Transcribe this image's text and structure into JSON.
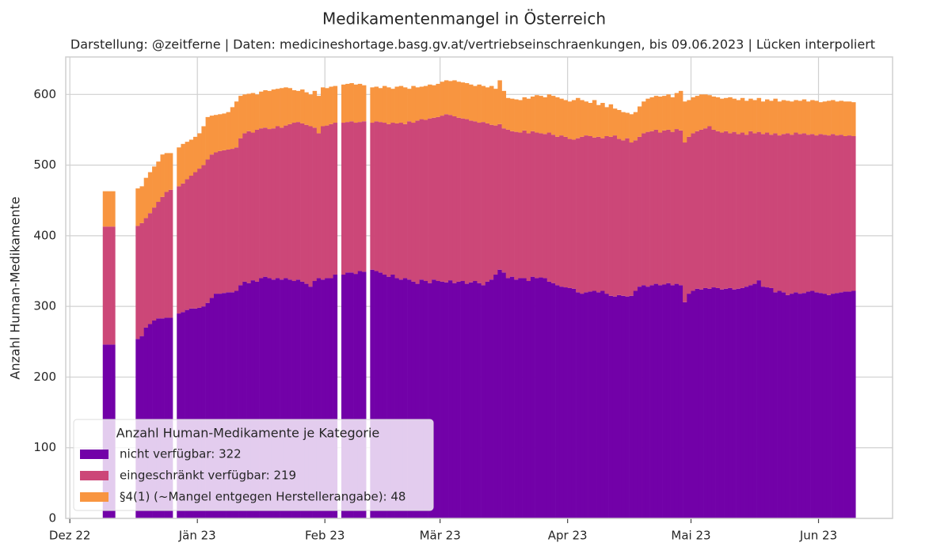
{
  "chart_data": {
    "type": "stacked_bar",
    "title": "Medikamentenmangel in Österreich",
    "subtitle": "Darstellung: @zeitferne | Daten: medicineshortage.basg.gv.at/vertriebseinschraenkungen, bis 09.06.2023 | Lücken interpoliert",
    "y_label": "Anzahl Human-Medikamente",
    "legend_title": "Anzahl Human-Medikamente je Kategorie",
    "legend_position": "lower left",
    "grid": true,
    "xlim": [
      -1,
      200
    ],
    "xticks": [
      {
        "value": 0,
        "label": "Dez 22"
      },
      {
        "value": 31,
        "label": "Jän 23"
      },
      {
        "value": 62,
        "label": "Feb 23"
      },
      {
        "value": 90,
        "label": "Mär 23"
      },
      {
        "value": 121,
        "label": "Apr 23"
      },
      {
        "value": 151,
        "label": "Mai 23"
      },
      {
        "value": 182,
        "label": "Jun 23"
      }
    ],
    "ylim": [
      0,
      653
    ],
    "yticks": [
      0,
      100,
      200,
      300,
      400,
      500,
      600
    ],
    "x": [
      8,
      9,
      10,
      16,
      17,
      18,
      19,
      20,
      21,
      22,
      23,
      24,
      26,
      27,
      28,
      29,
      30,
      31,
      32,
      33,
      34,
      35,
      36,
      37,
      38,
      39,
      40,
      41,
      42,
      43,
      44,
      45,
      46,
      47,
      48,
      49,
      50,
      51,
      52,
      53,
      54,
      55,
      56,
      57,
      58,
      59,
      60,
      61,
      62,
      63,
      64,
      66,
      67,
      68,
      69,
      70,
      71,
      73,
      74,
      75,
      76,
      77,
      78,
      79,
      80,
      81,
      82,
      83,
      84,
      85,
      86,
      87,
      88,
      89,
      90,
      91,
      92,
      93,
      94,
      95,
      96,
      97,
      98,
      99,
      100,
      101,
      102,
      103,
      104,
      105,
      106,
      107,
      108,
      109,
      110,
      111,
      112,
      113,
      114,
      115,
      116,
      117,
      118,
      119,
      120,
      121,
      122,
      123,
      124,
      125,
      126,
      127,
      128,
      129,
      130,
      131,
      132,
      133,
      134,
      135,
      136,
      137,
      138,
      139,
      140,
      141,
      142,
      143,
      144,
      145,
      146,
      147,
      148,
      149,
      150,
      151,
      152,
      153,
      154,
      155,
      156,
      157,
      158,
      159,
      160,
      161,
      162,
      163,
      164,
      165,
      166,
      167,
      168,
      169,
      170,
      171,
      172,
      173,
      174,
      175,
      176,
      177,
      178,
      179,
      180,
      181,
      182,
      183,
      184,
      185,
      186,
      187,
      188,
      189,
      190
    ],
    "series": [
      {
        "name": "nicht verfügbar: 322",
        "color": "#7201a8",
        "values": [
          246,
          246,
          246,
          254,
          258,
          270,
          275,
          280,
          283,
          283,
          284,
          284,
          290,
          292,
          295,
          297,
          297,
          298,
          300,
          305,
          312,
          318,
          318,
          319,
          320,
          320,
          322,
          330,
          335,
          333,
          337,
          335,
          340,
          342,
          340,
          338,
          340,
          338,
          340,
          338,
          336,
          338,
          335,
          332,
          328,
          336,
          340,
          338,
          340,
          340,
          345,
          345,
          348,
          348,
          346,
          350,
          349,
          352,
          350,
          348,
          345,
          342,
          345,
          340,
          338,
          340,
          338,
          335,
          332,
          338,
          336,
          333,
          338,
          336,
          335,
          334,
          337,
          333,
          335,
          336,
          332,
          334,
          336,
          333,
          330,
          335,
          338,
          345,
          352,
          348,
          340,
          342,
          338,
          340,
          340,
          336,
          342,
          340,
          341,
          340,
          335,
          333,
          330,
          328,
          327,
          326,
          325,
          320,
          318,
          320,
          321,
          322,
          320,
          322,
          318,
          315,
          314,
          316,
          315,
          314,
          315,
          322,
          328,
          330,
          328,
          330,
          332,
          330,
          331,
          333,
          330,
          332,
          330,
          306,
          318,
          322,
          325,
          324,
          326,
          325,
          327,
          326,
          324,
          325,
          326,
          324,
          325,
          326,
          328,
          330,
          332,
          337,
          328,
          327,
          326,
          320,
          322,
          320,
          316,
          318,
          320,
          318,
          319,
          321,
          322,
          320,
          319,
          318,
          316,
          318,
          319,
          320,
          321,
          321,
          322
        ]
      },
      {
        "name": "eingeschränkt verfügbar: 219",
        "color": "#cc4778",
        "values": [
          167,
          167,
          167,
          160,
          160,
          155,
          157,
          160,
          165,
          172,
          178,
          181,
          180,
          182,
          185,
          188,
          193,
          197,
          200,
          203,
          203,
          200,
          202,
          202,
          202,
          203,
          203,
          208,
          210,
          215,
          209,
          215,
          212,
          211,
          211,
          214,
          215,
          215,
          216,
          220,
          224,
          223,
          224,
          225,
          227,
          217,
          205,
          217,
          216,
          218,
          215,
          215,
          213,
          214,
          214,
          211,
          213,
          208,
          212,
          213,
          215,
          216,
          215,
          219,
          222,
          218,
          224,
          225,
          231,
          227,
          228,
          233,
          229,
          232,
          235,
          238,
          234,
          236,
          232,
          230,
          233,
          229,
          226,
          227,
          231,
          224,
          219,
          211,
          206,
          204,
          210,
          206,
          209,
          206,
          209,
          209,
          206,
          206,
          204,
          204,
          211,
          210,
          210,
          214,
          213,
          211,
          211,
          218,
          222,
          222,
          220,
          217,
          220,
          216,
          223,
          225,
          228,
          221,
          220,
          224,
          217,
          213,
          212,
          215,
          219,
          218,
          218,
          216,
          218,
          217,
          217,
          219,
          219,
          226,
          222,
          223,
          223,
          226,
          226,
          230,
          223,
          222,
          222,
          223,
          219,
          223,
          219,
          220,
          215,
          218,
          213,
          210,
          216,
          219,
          217,
          225,
          220,
          224,
          229,
          225,
          226,
          226,
          226,
          222,
          222,
          222,
          225,
          225,
          226,
          226,
          223,
          223,
          220,
          221,
          219
        ]
      },
      {
        "name": "§4(1) (~Mangel entgegen Herstellerangabe): 48",
        "color": "#f89540",
        "values": [
          50,
          50,
          50,
          53,
          52,
          57,
          58,
          58,
          57,
          60,
          55,
          52,
          55,
          56,
          53,
          51,
          50,
          50,
          55,
          60,
          55,
          53,
          52,
          52,
          53,
          59,
          65,
          60,
          55,
          53,
          56,
          50,
          52,
          53,
          54,
          55,
          53,
          56,
          54,
          51,
          46,
          44,
          48,
          46,
          45,
          52,
          53,
          55,
          53,
          53,
          52,
          54,
          54,
          54,
          54,
          54,
          51,
          50,
          49,
          48,
          52,
          52,
          48,
          52,
          52,
          52,
          46,
          52,
          47,
          46,
          48,
          48,
          46,
          47,
          48,
          48,
          48,
          51,
          51,
          51,
          51,
          51,
          50,
          54,
          51,
          51,
          55,
          52,
          62,
          53,
          45,
          46,
          46,
          46,
          47,
          49,
          49,
          53,
          53,
          52,
          54,
          55,
          56,
          52,
          52,
          53,
          56,
          57,
          52,
          48,
          47,
          53,
          45,
          50,
          41,
          46,
          38,
          41,
          40,
          36,
          40,
          40,
          43,
          45,
          47,
          48,
          48,
          51,
          49,
          50,
          49,
          51,
          56,
          58,
          52,
          51,
          50,
          50,
          48,
          44,
          47,
          48,
          48,
          47,
          51,
          47,
          48,
          49,
          48,
          46,
          47,
          48,
          46,
          47,
          48,
          49,
          48,
          48,
          46,
          47,
          46,
          47,
          48,
          47,
          48,
          49,
          45,
          47,
          49,
          48,
          48,
          48,
          49,
          48,
          48
        ]
      }
    ]
  }
}
